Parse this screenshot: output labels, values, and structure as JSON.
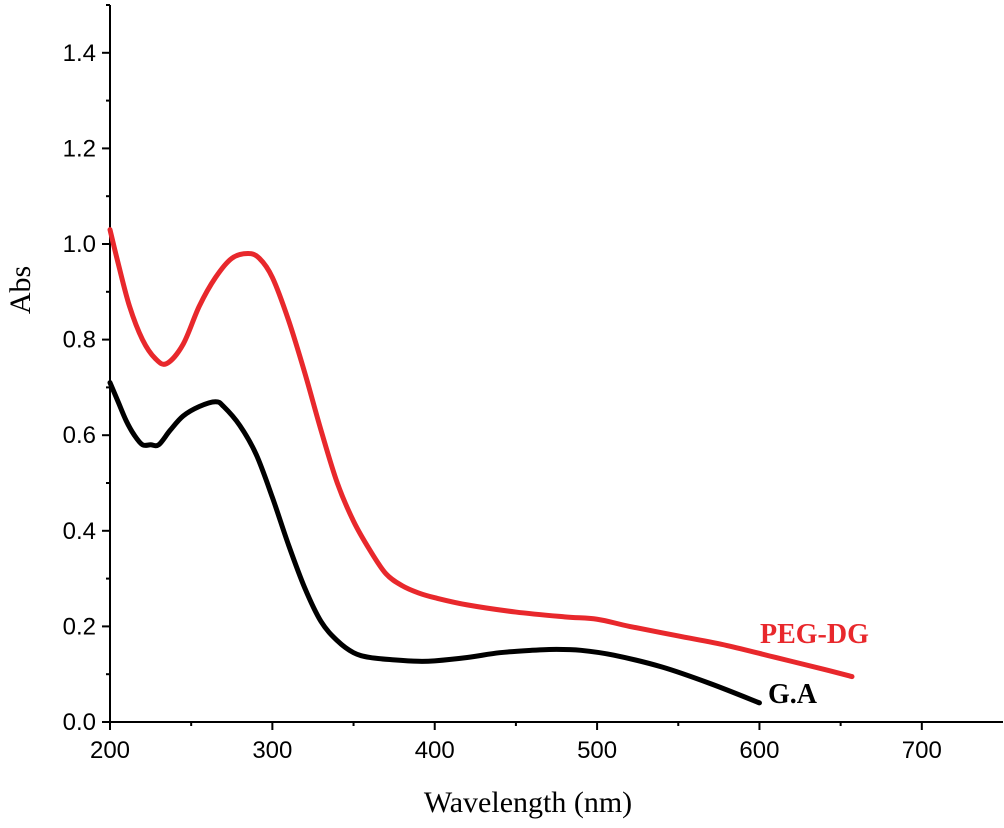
{
  "chart_data": {
    "type": "line",
    "xlabel": "Wavelength (nm)",
    "ylabel": "Abs",
    "xlim": [
      200,
      750
    ],
    "ylim": [
      0.0,
      1.5
    ],
    "x_ticks": [
      200,
      300,
      400,
      500,
      600,
      700
    ],
    "y_ticks": [
      0.0,
      0.2,
      0.4,
      0.6,
      0.8,
      1.0,
      1.2,
      1.4
    ],
    "x_tick_labels": [
      "200",
      "300",
      "400",
      "500",
      "600",
      "700"
    ],
    "y_tick_labels": [
      "0.0",
      "0.2",
      "0.4",
      "0.6",
      "0.8",
      "1.0",
      "1.2",
      "1.4"
    ],
    "grid": false,
    "series": [
      {
        "name": "PEG-DG",
        "color": "#e8282c",
        "x": [
          200,
          205,
          212,
          220,
          228,
          235,
          245,
          255,
          265,
          275,
          285,
          292,
          300,
          310,
          320,
          330,
          340,
          350,
          360,
          370,
          380,
          390,
          400,
          420,
          450,
          480,
          500,
          520,
          550,
          580,
          610,
          640,
          657
        ],
        "y": [
          1.03,
          0.96,
          0.87,
          0.8,
          0.76,
          0.75,
          0.79,
          0.87,
          0.93,
          0.97,
          0.98,
          0.97,
          0.93,
          0.84,
          0.73,
          0.61,
          0.5,
          0.42,
          0.36,
          0.31,
          0.285,
          0.27,
          0.26,
          0.245,
          0.23,
          0.22,
          0.215,
          0.2,
          0.18,
          0.16,
          0.135,
          0.11,
          0.095
        ]
      },
      {
        "name": "G.A",
        "color": "#000000",
        "x": [
          200,
          205,
          210,
          215,
          220,
          225,
          230,
          237,
          245,
          255,
          265,
          270,
          280,
          290,
          300,
          310,
          320,
          330,
          340,
          350,
          360,
          375,
          390,
          400,
          420,
          440,
          460,
          475,
          490,
          510,
          540,
          570,
          600
        ],
        "y": [
          0.71,
          0.67,
          0.63,
          0.6,
          0.58,
          0.58,
          0.58,
          0.61,
          0.64,
          0.66,
          0.67,
          0.66,
          0.62,
          0.56,
          0.47,
          0.37,
          0.28,
          0.21,
          0.17,
          0.145,
          0.135,
          0.13,
          0.127,
          0.128,
          0.135,
          0.145,
          0.15,
          0.152,
          0.15,
          0.14,
          0.115,
          0.08,
          0.04
        ]
      }
    ]
  }
}
